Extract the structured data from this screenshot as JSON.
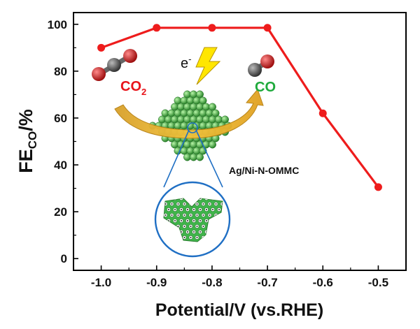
{
  "chart_data": {
    "type": "line",
    "xlabel": "Potential/V (vs.RHE)",
    "ylabel_main": "FE",
    "ylabel_sub": "CO",
    "ylabel_tail": "/%",
    "xlim": [
      -1.05,
      -0.45
    ],
    "ylim": [
      -5,
      105
    ],
    "x_ticks": [
      -1.0,
      -0.9,
      -0.8,
      -0.7,
      -0.6,
      -0.5
    ],
    "x_tick_labels": [
      "-1.0",
      "-0.9",
      "-0.8",
      "-0.7",
      "-0.6",
      "-0.5"
    ],
    "y_ticks": [
      0,
      20,
      40,
      60,
      80,
      100
    ],
    "y_tick_labels": [
      "0",
      "20",
      "40",
      "60",
      "80",
      "100"
    ],
    "grid": false,
    "series": [
      {
        "color": "#ee1c1c",
        "x": [
          -1.0,
          -0.9,
          -0.8,
          -0.7,
          -0.6,
          -0.5
        ],
        "y": [
          90,
          98.5,
          98.5,
          98.5,
          62,
          30.5
        ]
      }
    ]
  },
  "inset": {
    "electron_label": "e",
    "electron_sup": "-",
    "co2_label": "CO",
    "co2_sub": "2",
    "co_label": "CO",
    "catalyst_label": "Ag/Ni-N-OMMC",
    "colors": {
      "co2_text": "#e8141b",
      "co_text": "#1faa3c",
      "arrow": "#e8a21a",
      "lightning": "#ffe600",
      "catalyst": "#2ea832",
      "zoom_circle": "#1f6fc4",
      "carbon_atom": "#555555",
      "oxygen_atom": "#cc1f1f"
    }
  }
}
